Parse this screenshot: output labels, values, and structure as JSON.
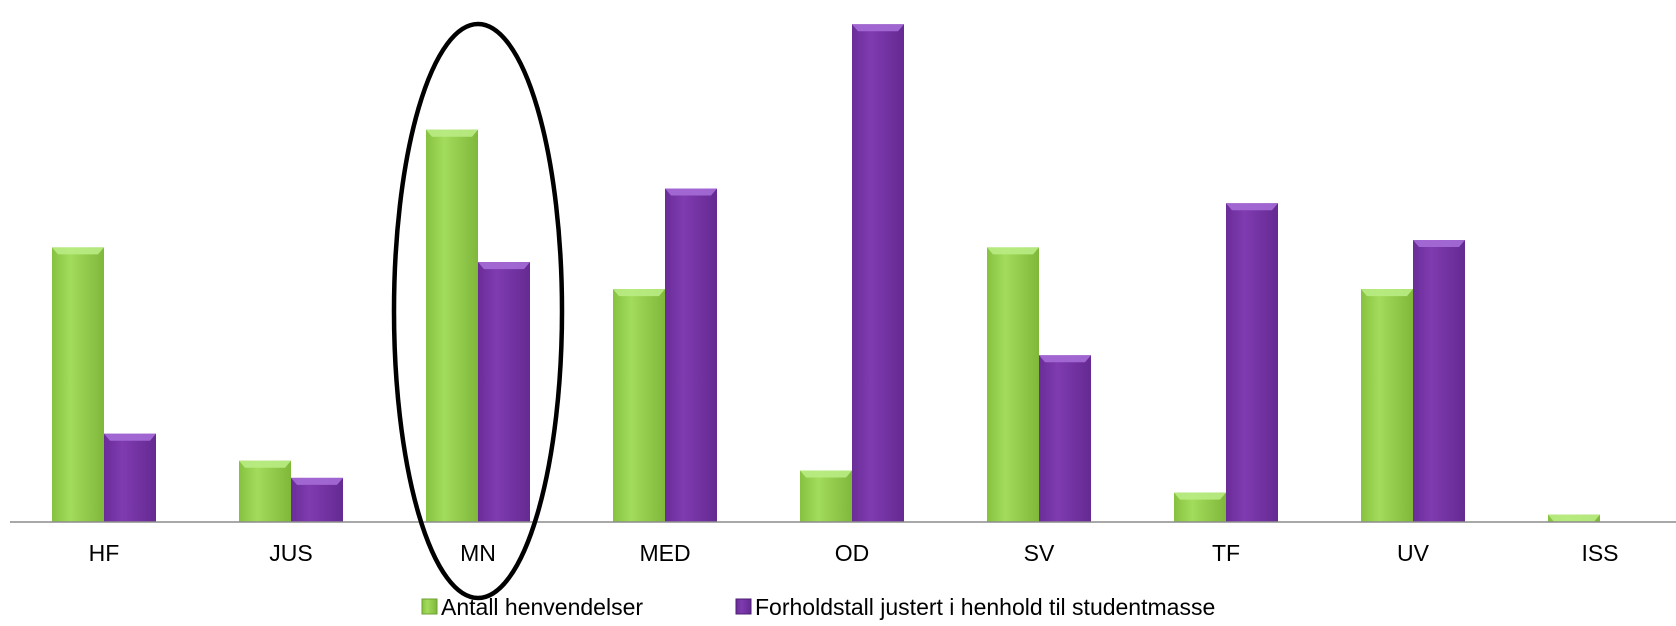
{
  "chart_data": {
    "type": "bar",
    "title": "",
    "xlabel": "",
    "ylabel": "",
    "categories": [
      "HF",
      "JUS",
      "MN",
      "MED",
      "OD",
      "SV",
      "TF",
      "UV",
      "ISS"
    ],
    "series": [
      {
        "name": "Antall henvendelser",
        "color": "#92d050",
        "values": [
          56,
          12.5,
          80,
          47.5,
          10.5,
          56,
          6,
          47.5,
          1.5
        ]
      },
      {
        "name": "Forholdstall justert i henhold til studentmasse",
        "color": "#7030a0",
        "values": [
          18,
          9,
          53,
          68,
          101.5,
          34,
          65,
          57.5,
          0
        ]
      }
    ],
    "ylim": [
      0,
      104
    ],
    "grid": false,
    "legend": "bottom",
    "annotation": {
      "shape": "ellipse",
      "target_category": "MN"
    }
  }
}
